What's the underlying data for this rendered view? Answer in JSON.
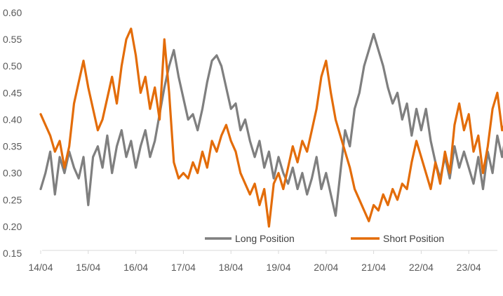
{
  "chart_data": {
    "type": "line",
    "title": "",
    "xlabel": "",
    "ylabel": "",
    "ylim": [
      0.15,
      0.6
    ],
    "y_ticks": [
      "0.60",
      "0.55",
      "0.50",
      "0.45",
      "0.40",
      "0.35",
      "0.30",
      "0.25",
      "0.20",
      "0.15"
    ],
    "x_ticks": [
      "14/04",
      "15/04",
      "16/04",
      "17/04",
      "18/04",
      "19/04",
      "20/04",
      "21/04",
      "22/04",
      "23/04"
    ],
    "grid": false,
    "legend_position": "bottom-inside",
    "x_unit": "day (14/04 = 0)",
    "series": [
      {
        "name": "Long Position",
        "color": "#7f7f7f",
        "points": [
          [
            0.0,
            0.27
          ],
          [
            0.1,
            0.3
          ],
          [
            0.2,
            0.34
          ],
          [
            0.3,
            0.26
          ],
          [
            0.4,
            0.33
          ],
          [
            0.5,
            0.3
          ],
          [
            0.6,
            0.34
          ],
          [
            0.7,
            0.31
          ],
          [
            0.8,
            0.29
          ],
          [
            0.9,
            0.33
          ],
          [
            1.0,
            0.24
          ],
          [
            1.1,
            0.33
          ],
          [
            1.2,
            0.35
          ],
          [
            1.3,
            0.31
          ],
          [
            1.4,
            0.37
          ],
          [
            1.5,
            0.3
          ],
          [
            1.6,
            0.35
          ],
          [
            1.7,
            0.38
          ],
          [
            1.8,
            0.33
          ],
          [
            1.9,
            0.36
          ],
          [
            2.0,
            0.31
          ],
          [
            2.1,
            0.35
          ],
          [
            2.2,
            0.38
          ],
          [
            2.3,
            0.33
          ],
          [
            2.4,
            0.36
          ],
          [
            2.5,
            0.41
          ],
          [
            2.6,
            0.46
          ],
          [
            2.7,
            0.5
          ],
          [
            2.8,
            0.53
          ],
          [
            2.9,
            0.48
          ],
          [
            3.0,
            0.44
          ],
          [
            3.1,
            0.4
          ],
          [
            3.2,
            0.41
          ],
          [
            3.3,
            0.38
          ],
          [
            3.4,
            0.42
          ],
          [
            3.5,
            0.47
          ],
          [
            3.6,
            0.51
          ],
          [
            3.7,
            0.52
          ],
          [
            3.8,
            0.5
          ],
          [
            3.9,
            0.46
          ],
          [
            4.0,
            0.42
          ],
          [
            4.1,
            0.43
          ],
          [
            4.2,
            0.38
          ],
          [
            4.3,
            0.4
          ],
          [
            4.4,
            0.36
          ],
          [
            4.5,
            0.33
          ],
          [
            4.6,
            0.36
          ],
          [
            4.7,
            0.31
          ],
          [
            4.8,
            0.34
          ],
          [
            4.9,
            0.29
          ],
          [
            5.0,
            0.33
          ],
          [
            5.1,
            0.3
          ],
          [
            5.2,
            0.28
          ],
          [
            5.3,
            0.31
          ],
          [
            5.4,
            0.27
          ],
          [
            5.5,
            0.3
          ],
          [
            5.6,
            0.26
          ],
          [
            5.7,
            0.29
          ],
          [
            5.8,
            0.33
          ],
          [
            5.9,
            0.27
          ],
          [
            6.0,
            0.3
          ],
          [
            6.1,
            0.26
          ],
          [
            6.2,
            0.22
          ],
          [
            6.3,
            0.3
          ],
          [
            6.4,
            0.38
          ],
          [
            6.5,
            0.35
          ],
          [
            6.6,
            0.42
          ],
          [
            6.7,
            0.45
          ],
          [
            6.8,
            0.5
          ],
          [
            6.9,
            0.53
          ],
          [
            7.0,
            0.56
          ],
          [
            7.1,
            0.53
          ],
          [
            7.2,
            0.5
          ],
          [
            7.3,
            0.46
          ],
          [
            7.4,
            0.43
          ],
          [
            7.5,
            0.45
          ],
          [
            7.6,
            0.4
          ],
          [
            7.7,
            0.43
          ],
          [
            7.8,
            0.37
          ],
          [
            7.9,
            0.42
          ],
          [
            8.0,
            0.38
          ],
          [
            8.1,
            0.42
          ],
          [
            8.2,
            0.36
          ],
          [
            8.3,
            0.32
          ],
          [
            8.4,
            0.29
          ],
          [
            8.5,
            0.33
          ],
          [
            8.6,
            0.29
          ],
          [
            8.7,
            0.35
          ],
          [
            8.8,
            0.31
          ],
          [
            8.9,
            0.34
          ],
          [
            9.0,
            0.31
          ],
          [
            9.1,
            0.28
          ],
          [
            9.2,
            0.33
          ],
          [
            9.3,
            0.27
          ],
          [
            9.4,
            0.34
          ],
          [
            9.5,
            0.3
          ],
          [
            9.6,
            0.37
          ],
          [
            9.7,
            0.33
          ],
          [
            9.8,
            0.38
          ],
          [
            9.85,
            0.34
          ]
        ]
      },
      {
        "name": "Short Position",
        "color": "#e36c09",
        "points": [
          [
            0.0,
            0.41
          ],
          [
            0.1,
            0.39
          ],
          [
            0.2,
            0.37
          ],
          [
            0.3,
            0.34
          ],
          [
            0.4,
            0.36
          ],
          [
            0.5,
            0.31
          ],
          [
            0.6,
            0.35
          ],
          [
            0.7,
            0.43
          ],
          [
            0.8,
            0.47
          ],
          [
            0.9,
            0.51
          ],
          [
            1.0,
            0.46
          ],
          [
            1.1,
            0.42
          ],
          [
            1.2,
            0.38
          ],
          [
            1.3,
            0.4
          ],
          [
            1.4,
            0.44
          ],
          [
            1.5,
            0.48
          ],
          [
            1.6,
            0.43
          ],
          [
            1.7,
            0.5
          ],
          [
            1.8,
            0.55
          ],
          [
            1.9,
            0.57
          ],
          [
            2.0,
            0.52
          ],
          [
            2.1,
            0.45
          ],
          [
            2.2,
            0.48
          ],
          [
            2.3,
            0.42
          ],
          [
            2.4,
            0.46
          ],
          [
            2.5,
            0.4
          ],
          [
            2.6,
            0.55
          ],
          [
            2.7,
            0.45
          ],
          [
            2.8,
            0.32
          ],
          [
            2.9,
            0.29
          ],
          [
            3.0,
            0.3
          ],
          [
            3.1,
            0.29
          ],
          [
            3.2,
            0.32
          ],
          [
            3.3,
            0.3
          ],
          [
            3.4,
            0.34
          ],
          [
            3.5,
            0.31
          ],
          [
            3.6,
            0.36
          ],
          [
            3.7,
            0.34
          ],
          [
            3.8,
            0.37
          ],
          [
            3.9,
            0.39
          ],
          [
            4.0,
            0.36
          ],
          [
            4.1,
            0.34
          ],
          [
            4.2,
            0.3
          ],
          [
            4.3,
            0.28
          ],
          [
            4.4,
            0.26
          ],
          [
            4.5,
            0.28
          ],
          [
            4.6,
            0.24
          ],
          [
            4.7,
            0.27
          ],
          [
            4.8,
            0.2
          ],
          [
            4.9,
            0.28
          ],
          [
            5.0,
            0.3
          ],
          [
            5.1,
            0.27
          ],
          [
            5.2,
            0.31
          ],
          [
            5.3,
            0.35
          ],
          [
            5.4,
            0.32
          ],
          [
            5.5,
            0.36
          ],
          [
            5.6,
            0.34
          ],
          [
            5.7,
            0.38
          ],
          [
            5.8,
            0.42
          ],
          [
            5.9,
            0.48
          ],
          [
            6.0,
            0.51
          ],
          [
            6.1,
            0.45
          ],
          [
            6.2,
            0.4
          ],
          [
            6.3,
            0.37
          ],
          [
            6.4,
            0.34
          ],
          [
            6.5,
            0.31
          ],
          [
            6.6,
            0.27
          ],
          [
            6.7,
            0.25
          ],
          [
            6.8,
            0.23
          ],
          [
            6.9,
            0.21
          ],
          [
            7.0,
            0.24
          ],
          [
            7.1,
            0.23
          ],
          [
            7.2,
            0.26
          ],
          [
            7.3,
            0.24
          ],
          [
            7.4,
            0.27
          ],
          [
            7.5,
            0.25
          ],
          [
            7.6,
            0.28
          ],
          [
            7.7,
            0.27
          ],
          [
            7.8,
            0.32
          ],
          [
            7.9,
            0.36
          ],
          [
            8.0,
            0.33
          ],
          [
            8.1,
            0.3
          ],
          [
            8.2,
            0.27
          ],
          [
            8.3,
            0.32
          ],
          [
            8.4,
            0.28
          ],
          [
            8.5,
            0.34
          ],
          [
            8.6,
            0.3
          ],
          [
            8.7,
            0.39
          ],
          [
            8.8,
            0.43
          ],
          [
            8.9,
            0.38
          ],
          [
            9.0,
            0.41
          ],
          [
            9.1,
            0.34
          ],
          [
            9.2,
            0.37
          ],
          [
            9.3,
            0.3
          ],
          [
            9.4,
            0.35
          ],
          [
            9.5,
            0.42
          ],
          [
            9.6,
            0.45
          ],
          [
            9.7,
            0.38
          ],
          [
            9.8,
            0.4
          ],
          [
            9.85,
            0.36
          ]
        ]
      }
    ]
  }
}
